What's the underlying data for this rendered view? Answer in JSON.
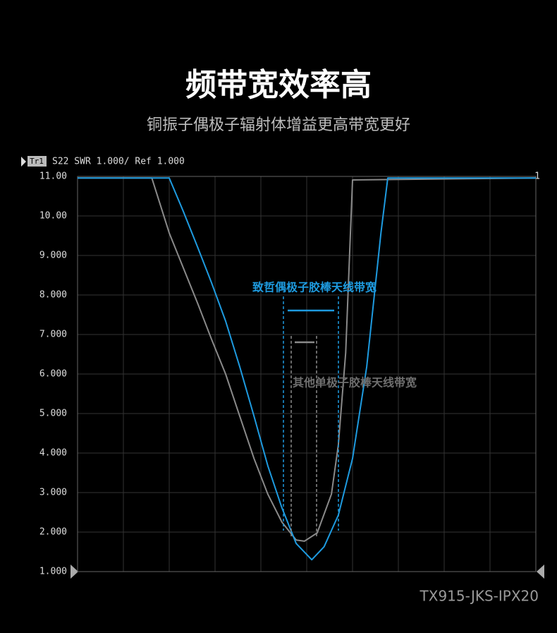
{
  "chart_data": {
    "type": "line",
    "title": "频带宽效率高",
    "subtitle": "铜振子偶极子辐射体增益更高带宽更好",
    "trace_label": "Tr1",
    "trace_info": "S22 SWR 1.000/ Ref 1.000",
    "marker_label": "1",
    "model": "TX915-JKS-IPX20",
    "xlim": [
      0,
      10
    ],
    "ylim": [
      1,
      11
    ],
    "yticks": [
      {
        "value": 1,
        "label": "1.000"
      },
      {
        "value": 2,
        "label": "2.000"
      },
      {
        "value": 3,
        "label": "3.000"
      },
      {
        "value": 4,
        "label": "4.000"
      },
      {
        "value": 5,
        "label": "5.000"
      },
      {
        "value": 6,
        "label": "6.000"
      },
      {
        "value": 7,
        "label": "7.000"
      },
      {
        "value": 8,
        "label": "8.000"
      },
      {
        "value": 9,
        "label": "9.000"
      },
      {
        "value": 10,
        "label": "10.00"
      },
      {
        "value": 11,
        "label": "11.00"
      }
    ],
    "grid": true,
    "series": [
      {
        "name": "致哲偶极子胶棒天线带宽",
        "color": "#1e9be0",
        "x": [
          0,
          2.0,
          2.31,
          2.62,
          2.92,
          3.23,
          3.54,
          3.85,
          4.15,
          4.46,
          4.77,
          5.11,
          5.38,
          5.69,
          6.0,
          6.31,
          6.62,
          6.77,
          10
        ],
        "values": [
          10.96,
          10.96,
          10.11,
          9.21,
          8.32,
          7.34,
          6.18,
          4.93,
          3.68,
          2.61,
          1.71,
          1.3,
          1.63,
          2.43,
          3.86,
          6.18,
          9.57,
          10.96,
          10.96
        ]
      },
      {
        "name": "其他单极子胶棒天线带宽",
        "color": "#8a8a8a",
        "x": [
          0,
          1.62,
          2.0,
          2.31,
          2.62,
          2.92,
          3.23,
          3.54,
          3.85,
          4.15,
          4.46,
          4.77,
          4.95,
          5.23,
          5.54,
          5.69,
          5.85,
          6.0,
          10
        ],
        "values": [
          10.96,
          10.96,
          9.57,
          8.68,
          7.79,
          6.89,
          6.0,
          4.93,
          3.86,
          2.96,
          2.25,
          1.8,
          1.77,
          1.98,
          2.96,
          4.21,
          6.54,
          10.91,
          10.96
        ]
      }
    ]
  }
}
